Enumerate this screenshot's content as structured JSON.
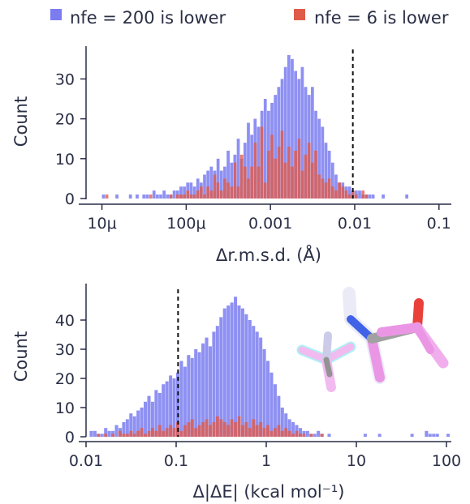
{
  "legend": {
    "items": [
      {
        "label": "nfe = 200 is lower",
        "color": "#7a7cf0"
      },
      {
        "label": "nfe = 6 is lower",
        "color": "#e05a4a"
      }
    ],
    "placement": "top"
  },
  "chart_data": [
    {
      "type": "histogram",
      "xscale": "log",
      "xlabel": "Δr.m.s.d. (Å)",
      "ylabel": "Count",
      "xlim": [
        7e-06,
        0.12
      ],
      "ylim": [
        0,
        37
      ],
      "xticks": [
        {
          "value": 1e-05,
          "label": "10μ"
        },
        {
          "value": 0.0001,
          "label": "100μ"
        },
        {
          "value": 0.001,
          "label": "0.001"
        },
        {
          "value": 0.01,
          "label": "0.01"
        },
        {
          "value": 0.1,
          "label": "0.1"
        }
      ],
      "yticks": [
        0,
        10,
        20,
        30
      ],
      "threshold_line": 0.0095,
      "bins_log10": {
        "start": -5.0,
        "width": 0.04
      },
      "series": [
        {
          "name": "nfe = 200 is lower",
          "color": "#7a7cf0",
          "values": [
            1,
            0,
            0,
            0,
            1,
            0,
            0,
            0,
            1,
            0,
            1,
            0,
            1,
            1,
            0,
            2,
            1,
            1,
            2,
            1,
            1,
            2,
            2,
            3,
            3,
            4,
            4,
            3,
            5,
            4,
            6,
            7,
            8,
            7,
            10,
            7,
            8,
            12,
            9,
            11,
            15,
            10,
            14,
            19,
            16,
            20,
            18,
            22,
            25,
            22,
            24,
            26,
            28,
            30,
            33,
            36,
            35,
            32,
            30,
            33,
            28,
            26,
            28,
            22,
            20,
            18,
            14,
            12,
            9,
            6,
            4,
            4,
            3,
            3,
            2,
            2,
            2,
            1,
            1,
            1,
            1,
            0,
            0,
            1,
            0,
            0,
            0,
            0,
            0,
            0,
            1
          ]
        },
        {
          "name": "nfe = 6 is lower",
          "color": "#e05a4a",
          "values": [
            0,
            1,
            0,
            0,
            0,
            0,
            0,
            0,
            0,
            0,
            0,
            0,
            0,
            0,
            1,
            0,
            0,
            0,
            0,
            0,
            1,
            0,
            1,
            1,
            1,
            2,
            1,
            1,
            2,
            3,
            1,
            3,
            2,
            6,
            4,
            2,
            5,
            4,
            3,
            9,
            3,
            11,
            8,
            5,
            8,
            14,
            8,
            18,
            4,
            12,
            16,
            10,
            13,
            17,
            9,
            13,
            8,
            12,
            15,
            7,
            11,
            14,
            9,
            12,
            6,
            5,
            4,
            5,
            3,
            2,
            4,
            3,
            2,
            1,
            2,
            1,
            0,
            2,
            1,
            0,
            0,
            0,
            0,
            0,
            0,
            0,
            0,
            0,
            0,
            0,
            0
          ]
        }
      ]
    },
    {
      "type": "histogram",
      "xscale": "log",
      "xlabel": "Δ|ΔE| (kcal mol⁻¹)",
      "ylabel": "Count",
      "xlim": [
        0.01,
        100
      ],
      "ylim": [
        0,
        50
      ],
      "xticks": [
        {
          "value": 0.01,
          "label": "0.01"
        },
        {
          "value": 0.1,
          "label": "0.1"
        },
        {
          "value": 1,
          "label": "1"
        },
        {
          "value": 10,
          "label": "10"
        },
        {
          "value": 100,
          "label": "100"
        }
      ],
      "yticks": [
        0,
        10,
        20,
        30,
        40
      ],
      "threshold_line": 0.105,
      "bins_log10": {
        "start": -1.96,
        "width": 0.04
      },
      "series": [
        {
          "name": "nfe = 200 is lower",
          "color": "#7a7cf0",
          "values": [
            2,
            2,
            1,
            1,
            3,
            2,
            2,
            4,
            3,
            5,
            6,
            8,
            7,
            9,
            10,
            12,
            14,
            12,
            16,
            15,
            18,
            19,
            21,
            20,
            22,
            26,
            24,
            28,
            27,
            30,
            29,
            32,
            34,
            31,
            36,
            38,
            41,
            44,
            45,
            46,
            48,
            45,
            44,
            42,
            40,
            38,
            36,
            34,
            30,
            26,
            22,
            18,
            14,
            10,
            8,
            6,
            5,
            4,
            3,
            2,
            2,
            1,
            1,
            2,
            1,
            0,
            1,
            0,
            0,
            0,
            0,
            0,
            0,
            0,
            0,
            0,
            1,
            0,
            0,
            0,
            1,
            0,
            0,
            0,
            0,
            0,
            0,
            0,
            0,
            1,
            0,
            0,
            0,
            2,
            1,
            1,
            1,
            0,
            0,
            1
          ]
        },
        {
          "name": "nfe = 6 is lower",
          "color": "#e05a4a",
          "values": [
            0,
            0,
            1,
            0,
            1,
            0,
            1,
            0,
            2,
            1,
            1,
            2,
            1,
            2,
            3,
            1,
            2,
            3,
            2,
            4,
            2,
            3,
            4,
            3,
            5,
            2,
            4,
            5,
            6,
            3,
            4,
            5,
            6,
            4,
            5,
            7,
            6,
            5,
            4,
            6,
            5,
            7,
            4,
            5,
            3,
            6,
            4,
            5,
            3,
            4,
            2,
            3,
            4,
            2,
            3,
            2,
            1,
            2,
            1,
            1,
            0,
            1,
            0,
            0,
            1,
            0,
            0,
            0,
            0,
            0,
            0,
            0,
            0,
            0,
            0,
            0,
            0,
            0,
            0,
            0,
            0,
            0,
            0,
            0,
            0,
            0,
            0,
            0,
            0,
            0,
            0,
            0,
            0,
            0,
            0,
            0,
            0,
            0,
            0,
            0
          ]
        }
      ]
    }
  ]
}
